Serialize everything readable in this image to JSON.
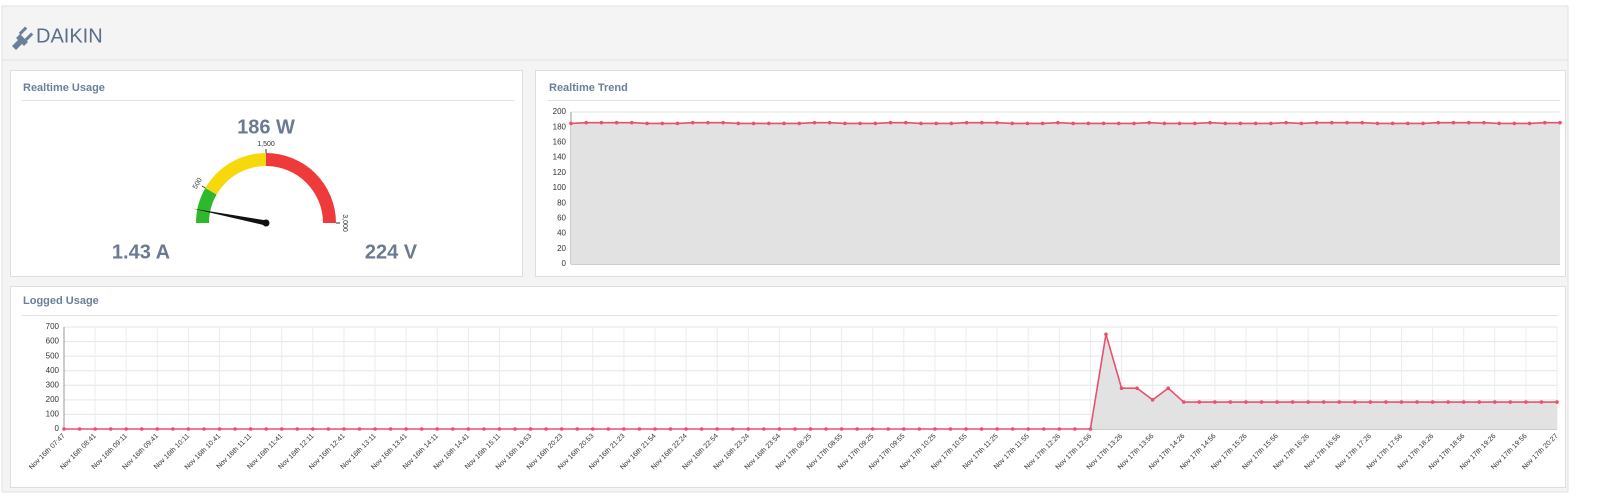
{
  "header": {
    "title": "DAIKIN"
  },
  "chart_data": [
    {
      "type": "gauge",
      "title": "Realtime Usage",
      "value": 186,
      "value_label": "186 W",
      "color": "#111111",
      "ylim": [
        0,
        3000
      ],
      "yticks": [
        500,
        {
          "value": 1500,
          "label": "1,500"
        },
        {
          "value": 3000,
          "label": "3,000"
        }
      ],
      "bands": [
        {
          "from": 0,
          "to": 500,
          "color": "#2eb82e"
        },
        {
          "from": 500,
          "to": 1500,
          "color": "#f5d90a"
        },
        {
          "from": 1500,
          "to": 3000,
          "color": "#ee3a3a"
        }
      ],
      "readings": [
        "1.43 A",
        "224 V"
      ]
    },
    {
      "type": "line",
      "title": "Realtime Trend",
      "color": "#e8506e",
      "area_color": "#e2e2e2",
      "grid": true,
      "ylim": [
        0,
        200
      ],
      "yticks": [
        0,
        20,
        40,
        60,
        80,
        100,
        120,
        140,
        160,
        180,
        200
      ],
      "values": [
        185,
        186,
        186,
        186,
        186,
        185,
        185,
        185,
        186,
        186,
        186,
        185,
        185,
        185,
        185,
        185,
        186,
        186,
        185,
        185,
        185,
        186,
        186,
        185,
        185,
        185,
        186,
        186,
        186,
        185,
        185,
        185,
        186,
        185,
        185,
        185,
        185,
        185,
        186,
        185,
        185,
        185,
        186,
        185,
        185,
        185,
        185,
        186,
        185,
        186,
        186,
        186,
        186,
        185,
        185,
        185,
        185,
        186,
        186,
        186,
        186,
        185,
        185,
        185,
        186,
        186
      ]
    },
    {
      "type": "line",
      "title": "Logged Usage",
      "color": "#e8506e",
      "area_color": "#e2e2e2",
      "grid": true,
      "ylim": [
        0,
        700
      ],
      "yticks": [
        0,
        100,
        200,
        300,
        400,
        500,
        600,
        700
      ],
      "categories": [
        "Nov 16th 07:47",
        null,
        "Nov 16th 08:41",
        null,
        "Nov 16th 09:11",
        null,
        "Nov 16th 09:41",
        null,
        "Nov 16th 10:11",
        null,
        "Nov 16th 10:41",
        null,
        "Nov 16th 11:11",
        null,
        "Nov 16th 11:41",
        null,
        "Nov 16th 12:11",
        null,
        "Nov 16th 12:41",
        null,
        "Nov 16th 13:11",
        null,
        "Nov 16th 13:41",
        null,
        "Nov 16th 14:11",
        null,
        "Nov 16th 14:41",
        null,
        "Nov 16th 15:11",
        null,
        "Nov 16th 19:53",
        null,
        "Nov 16th 20:23",
        null,
        "Nov 16th 20:53",
        null,
        "Nov 16th 21:23",
        null,
        "Nov 16th 21:54",
        null,
        "Nov 16th 22:24",
        null,
        "Nov 16th 22:54",
        null,
        "Nov 16th 23:24",
        null,
        "Nov 16th 23:54",
        null,
        "Nov 17th 08:25",
        null,
        "Nov 17th 08:55",
        null,
        "Nov 17th 09:25",
        null,
        "Nov 17th 09:55",
        null,
        "Nov 17th 10:25",
        null,
        "Nov 17th 10:55",
        null,
        "Nov 17th 11:25",
        null,
        "Nov 17th 11:55",
        null,
        "Nov 17th 12:26",
        null,
        "Nov 17th 12:56",
        null,
        "Nov 17th 13:26",
        null,
        "Nov 17th 13:56",
        null,
        "Nov 17th 14:26",
        null,
        "Nov 17th 14:56",
        null,
        "Nov 17th 15:26",
        null,
        "Nov 17th 15:56",
        null,
        "Nov 17th 16:26",
        null,
        "Nov 17th 16:56",
        null,
        "Nov 17th 17:26",
        null,
        "Nov 17th 17:56",
        null,
        "Nov 17th 18:26",
        null,
        "Nov 17th 18:56",
        null,
        "Nov 17th 19:26",
        null,
        "Nov 17th 19:56",
        null,
        "Nov 17th 20:27"
      ],
      "values": [
        0,
        0,
        0,
        0,
        0,
        0,
        0,
        0,
        0,
        0,
        0,
        0,
        0,
        0,
        0,
        0,
        0,
        0,
        0,
        0,
        0,
        0,
        0,
        0,
        0,
        0,
        0,
        0,
        0,
        0,
        0,
        0,
        0,
        0,
        0,
        0,
        0,
        0,
        0,
        0,
        0,
        0,
        0,
        0,
        0,
        0,
        0,
        0,
        0,
        0,
        0,
        0,
        0,
        0,
        0,
        0,
        0,
        0,
        0,
        0,
        0,
        0,
        0,
        0,
        0,
        0,
        0,
        650,
        280,
        280,
        200,
        280,
        185,
        185,
        185,
        185,
        185,
        185,
        185,
        185,
        185,
        185,
        185,
        185,
        185,
        185,
        185,
        185,
        185,
        185,
        185,
        185,
        185,
        185,
        185,
        185,
        185
      ]
    }
  ]
}
